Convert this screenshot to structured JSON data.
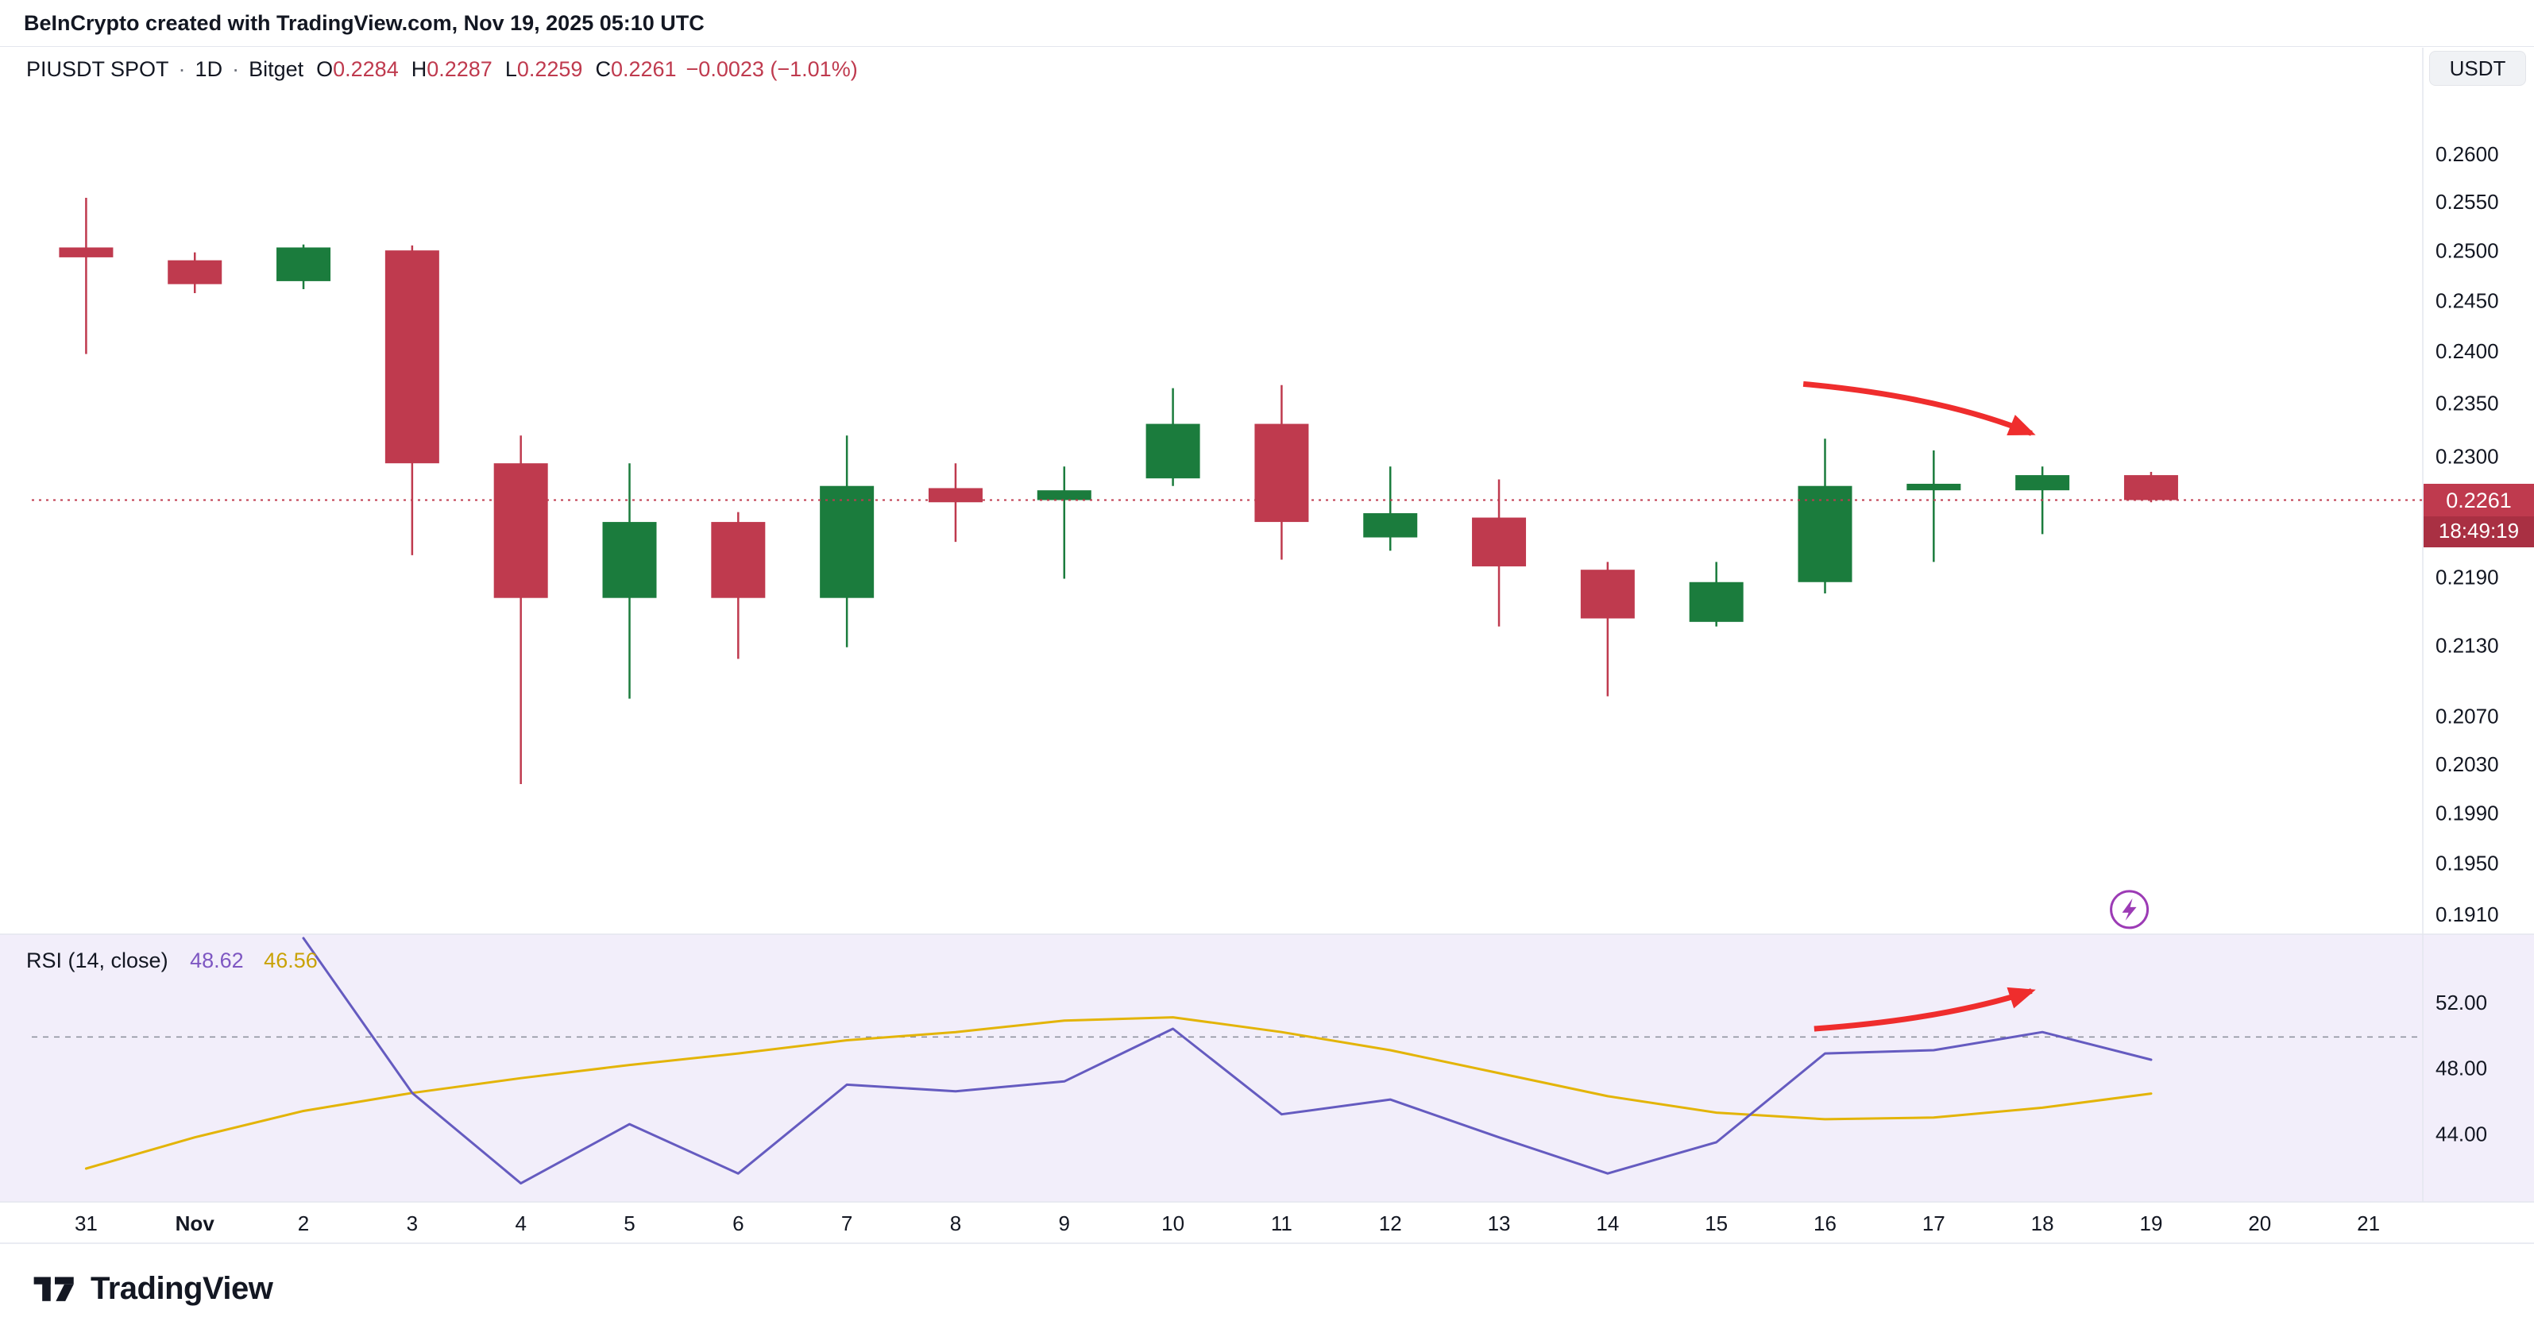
{
  "attribution": "BeInCrypto created with TradingView.com, Nov 19, 2025 05:10 UTC",
  "symbol_header": {
    "title": "PIUSDT SPOT",
    "sep": "·",
    "interval": "1D",
    "exchange": "Bitget",
    "o_label": "O",
    "o_value": "0.2284",
    "h_label": "H",
    "h_value": "0.2287",
    "l_label": "L",
    "l_value": "0.2259",
    "c_label": "C",
    "c_value": "0.2261",
    "change": "−0.0023 (−1.01%)",
    "currency_badge": "USDT"
  },
  "price_badge": {
    "price": "0.2261",
    "countdown": "18:49:19"
  },
  "rsi_legend": {
    "title": "RSI (14, close)",
    "value": "48.62",
    "ma_value": "46.56"
  },
  "footer": {
    "brand": "TradingView"
  },
  "colors": {
    "up": "#1b7c3d",
    "down": "#bf3a4e",
    "countdown_bg": "#a93043",
    "arrow": "#ef2d2d",
    "rsi_line": "#655bc0",
    "rsi_value": "#7e57c2",
    "rsi_ma": "#e3b407",
    "rsi_ma_text": "#c9a206",
    "rsi_bg": "#f2eefa",
    "axis_text": "#131722",
    "separator": "#e3e6ee",
    "lightning": "#9c3bb5",
    "muted": "#6a6d78"
  },
  "chart_data": {
    "type": "candlestick",
    "symbol": "PIUSDT",
    "interval": "1D",
    "exchange": "Bitget",
    "time_labels": [
      "31",
      "Nov",
      "2",
      "3",
      "4",
      "5",
      "6",
      "7",
      "8",
      "9",
      "10",
      "11",
      "12",
      "13",
      "14",
      "15",
      "16",
      "17",
      "18",
      "19",
      "20",
      "21"
    ],
    "bold_time_labels": [
      "Nov"
    ],
    "price_axis": {
      "scale": "log",
      "top": 0.26,
      "bottom": 0.191,
      "ticks": [
        "0.2600",
        "0.2550",
        "0.2500",
        "0.2450",
        "0.2400",
        "0.2350",
        "0.2300",
        "0.2190",
        "0.2130",
        "0.2070",
        "0.2030",
        "0.1990",
        "0.1950",
        "0.1910"
      ]
    },
    "current_price": 0.2261,
    "candles": [
      {
        "t": "31",
        "o": 0.2505,
        "h": 0.2556,
        "l": 0.2399,
        "c": 0.2495
      },
      {
        "t": "Nov",
        "o": 0.2492,
        "h": 0.25,
        "l": 0.2459,
        "c": 0.2468
      },
      {
        "t": "2",
        "o": 0.2471,
        "h": 0.2508,
        "l": 0.2463,
        "c": 0.2505
      },
      {
        "t": "3",
        "o": 0.2502,
        "h": 0.2507,
        "l": 0.2211,
        "c": 0.2295
      },
      {
        "t": "4",
        "o": 0.2295,
        "h": 0.2321,
        "l": 0.2015,
        "c": 0.2173
      },
      {
        "t": "5",
        "o": 0.2173,
        "h": 0.2295,
        "l": 0.2086,
        "c": 0.2241
      },
      {
        "t": "6",
        "o": 0.2241,
        "h": 0.225,
        "l": 0.212,
        "c": 0.2173
      },
      {
        "t": "7",
        "o": 0.2173,
        "h": 0.2321,
        "l": 0.213,
        "c": 0.2274
      },
      {
        "t": "8",
        "o": 0.2272,
        "h": 0.2295,
        "l": 0.2223,
        "c": 0.2259
      },
      {
        "t": "9",
        "o": 0.2261,
        "h": 0.2292,
        "l": 0.219,
        "c": 0.227
      },
      {
        "t": "10",
        "o": 0.2281,
        "h": 0.2366,
        "l": 0.2274,
        "c": 0.2332
      },
      {
        "t": "11",
        "o": 0.2332,
        "h": 0.2369,
        "l": 0.2207,
        "c": 0.2241
      },
      {
        "t": "12",
        "o": 0.2227,
        "h": 0.2292,
        "l": 0.2215,
        "c": 0.2249
      },
      {
        "t": "13",
        "o": 0.2245,
        "h": 0.228,
        "l": 0.2148,
        "c": 0.2201
      },
      {
        "t": "14",
        "o": 0.2198,
        "h": 0.2205,
        "l": 0.2088,
        "c": 0.2155
      },
      {
        "t": "15",
        "o": 0.2152,
        "h": 0.2205,
        "l": 0.2148,
        "c": 0.2187
      },
      {
        "t": "16",
        "o": 0.2187,
        "h": 0.2318,
        "l": 0.2177,
        "c": 0.2274
      },
      {
        "t": "17",
        "o": 0.227,
        "h": 0.2307,
        "l": 0.2205,
        "c": 0.2276
      },
      {
        "t": "18",
        "o": 0.227,
        "h": 0.2292,
        "l": 0.223,
        "c": 0.2284
      },
      {
        "t": "19",
        "o": 0.2284,
        "h": 0.2287,
        "l": 0.2259,
        "c": 0.2261
      }
    ],
    "rsi": {
      "label": "RSI (14, close)",
      "ticks": [
        "52.00",
        "48.00",
        "44.00"
      ],
      "mid_level": 50,
      "line": [
        null,
        null,
        58.2,
        46.6,
        41.1,
        44.7,
        41.7,
        47.1,
        46.7,
        47.3,
        50.5,
        45.3,
        46.2,
        43.9,
        41.7,
        43.6,
        49.0,
        49.2,
        50.3,
        48.62,
        null,
        null
      ],
      "ma": [
        42.0,
        43.9,
        45.5,
        46.6,
        47.5,
        48.3,
        49.0,
        49.8,
        50.3,
        51.0,
        51.2,
        50.3,
        49.2,
        47.8,
        46.4,
        45.4,
        45.0,
        45.1,
        45.7,
        46.56,
        null,
        null
      ]
    },
    "annotations": [
      {
        "type": "arrow",
        "pane": "price",
        "from": {
          "time_index": 15.8,
          "price": 0.237
        },
        "to": {
          "time_index": 17.9,
          "price": 0.2323
        }
      },
      {
        "type": "arrow",
        "pane": "rsi",
        "from": {
          "time_index": 15.9,
          "value": 50.5
        },
        "to": {
          "time_index": 17.9,
          "value": 52.8
        }
      },
      {
        "type": "lightning-icon",
        "pane": "price",
        "time_index": 18.8,
        "price": 0.1915
      }
    ]
  }
}
